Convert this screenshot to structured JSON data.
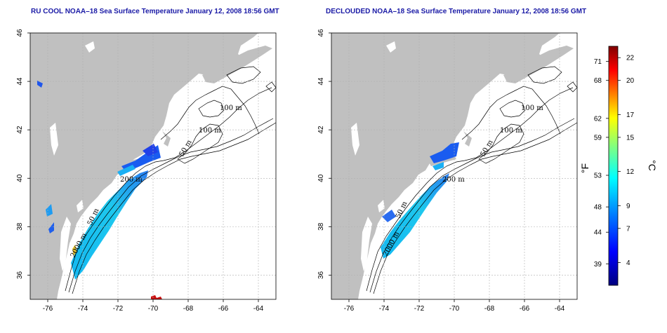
{
  "panels": [
    {
      "title": "RU COOL NOAA–18 Sea Surface Temperature January 12, 2008 18:56 GMT",
      "contour_labels": [
        "100 m",
        "100 m",
        "50 m",
        "200 m",
        "50 m",
        "2000 m"
      ]
    },
    {
      "title": "DECLOUDED NOAA–18 Sea Surface Temperature January 12, 2008 18:56 GMT",
      "contour_labels": [
        "100 m",
        "100 m",
        "50 m",
        "200 m",
        "50 m",
        "2000 m"
      ]
    }
  ],
  "axes": {
    "lon_range": [
      -77,
      -63
    ],
    "lat_range": [
      35,
      46
    ],
    "x_ticks": [
      "-76",
      "-74",
      "-72",
      "-70",
      "-68",
      "-66",
      "-64"
    ],
    "y_ticks": [
      "36",
      "38",
      "40",
      "42",
      "44",
      "46"
    ]
  },
  "colorbar": {
    "fahrenheit_label": "°F",
    "celsius_label": "°C",
    "fahrenheit_ticks": [
      "71",
      "68",
      "62",
      "59",
      "53",
      "48",
      "44",
      "39"
    ],
    "celsius_ticks": [
      "22",
      "20",
      "17",
      "15",
      "12",
      "9",
      "7",
      "4"
    ],
    "celsius_range": [
      2,
      23
    ],
    "colors": [
      "#00007f",
      "#0000ff",
      "#0080ff",
      "#00ffff",
      "#80ff80",
      "#ffff00",
      "#ff8000",
      "#ff0000",
      "#7f0000"
    ]
  },
  "colors": {
    "land": "#c0c0c0",
    "title": "#1a1aa6",
    "grid": "#b0b0b0"
  }
}
